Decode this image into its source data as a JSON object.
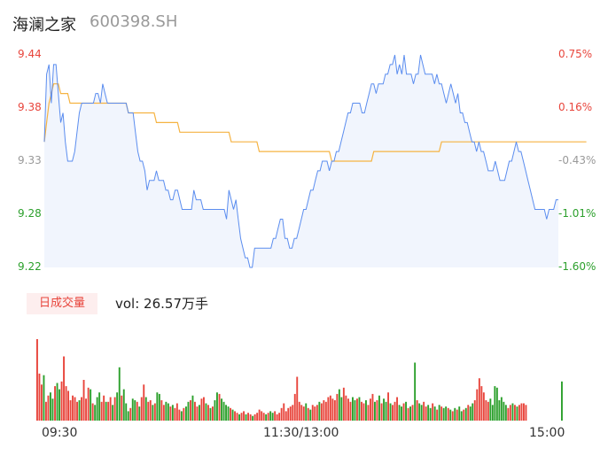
{
  "header": {
    "stock_name": "海澜之家",
    "stock_code": "600398.SH"
  },
  "volume": {
    "badge_label": "日成交量",
    "text": "vol: 26.57万手"
  },
  "colors": {
    "price_line": "#5b8def",
    "avg_line": "#f5b342",
    "up": "#e8453c",
    "down": "#2ca02c",
    "neutral": "#999999"
  },
  "chart_data": [
    {
      "type": "line",
      "x_ticks": [
        "09:30",
        "11:30/13:00",
        "15:00"
      ],
      "y_ticks_left": [
        "9.44",
        "9.38",
        "9.33",
        "9.28",
        "9.22"
      ],
      "y_ticks_right": [
        "0.75%",
        "0.16%",
        "-0.43%",
        "-1.01%",
        "-1.60%"
      ],
      "ylim": [
        9.22,
        9.44
      ],
      "series": [
        {
          "values": [
            9.35,
            9.42,
            9.43,
            9.39,
            9.43,
            9.43,
            9.4,
            9.37,
            9.38,
            9.35,
            9.33,
            9.33,
            9.33,
            9.34,
            9.36,
            9.38,
            9.39,
            9.39,
            9.39,
            9.39,
            9.39,
            9.39,
            9.4,
            9.4,
            9.39,
            9.41,
            9.4,
            9.39,
            9.39,
            9.39,
            9.39,
            9.39,
            9.39,
            9.39,
            9.39,
            9.39,
            9.38,
            9.38,
            9.38,
            9.36,
            9.34,
            9.33,
            9.33,
            9.32,
            9.3,
            9.31,
            9.31,
            9.31,
            9.32,
            9.31,
            9.31,
            9.31,
            9.3,
            9.3,
            9.29,
            9.29,
            9.3,
            9.3,
            9.29,
            9.28,
            9.28,
            9.28,
            9.28,
            9.28,
            9.3,
            9.29,
            9.29,
            9.29,
            9.28,
            9.28,
            9.28,
            9.28,
            9.28,
            9.28,
            9.28,
            9.28,
            9.28,
            9.28,
            9.27,
            9.3,
            9.29,
            9.28,
            9.29,
            9.27,
            9.25,
            9.24,
            9.23,
            9.23,
            9.22,
            9.22,
            9.24,
            9.24,
            9.24,
            9.24,
            9.24,
            9.24,
            9.24,
            9.24,
            9.25,
            9.25,
            9.26,
            9.27,
            9.27,
            9.25,
            9.25,
            9.24,
            9.24,
            9.25,
            9.25,
            9.26,
            9.27,
            9.28,
            9.28,
            9.29,
            9.3,
            9.3,
            9.31,
            9.32,
            9.32,
            9.33,
            9.33,
            9.33,
            9.32,
            9.33,
            9.33,
            9.34,
            9.34,
            9.35,
            9.36,
            9.37,
            9.38,
            9.38,
            9.39,
            9.39,
            9.39,
            9.39,
            9.38,
            9.38,
            9.39,
            9.4,
            9.41,
            9.41,
            9.4,
            9.41,
            9.41,
            9.41,
            9.42,
            9.42,
            9.43,
            9.43,
            9.44,
            9.42,
            9.43,
            9.42,
            9.44,
            9.42,
            9.42,
            9.42,
            9.41,
            9.42,
            9.42,
            9.44,
            9.43,
            9.42,
            9.42,
            9.42,
            9.42,
            9.41,
            9.42,
            9.41,
            9.41,
            9.4,
            9.39,
            9.4,
            9.41,
            9.4,
            9.39,
            9.4,
            9.38,
            9.38,
            9.37,
            9.37,
            9.36,
            9.35,
            9.35,
            9.34,
            9.35,
            9.34,
            9.34,
            9.33,
            9.32,
            9.32,
            9.32,
            9.33,
            9.32,
            9.31,
            9.31,
            9.31,
            9.32,
            9.33,
            9.33,
            9.34,
            9.35,
            9.34,
            9.34,
            9.33,
            9.32,
            9.31,
            9.3,
            9.29,
            9.28,
            9.28,
            9.28,
            9.28,
            9.28,
            9.27,
            9.28,
            9.28,
            9.28,
            9.29,
            9.29
          ]
        },
        {
          "values": [
            9.35,
            9.37,
            9.39,
            9.4,
            9.41,
            9.41,
            9.41,
            9.4,
            9.4,
            9.4,
            9.4,
            9.39,
            9.39,
            9.39,
            9.39,
            9.39,
            9.39,
            9.39,
            9.39,
            9.39,
            9.39,
            9.39,
            9.39,
            9.39,
            9.39,
            9.39,
            9.39,
            9.39,
            9.39,
            9.39,
            9.39,
            9.39,
            9.39,
            9.39,
            9.39,
            9.39,
            9.38,
            9.38,
            9.38,
            9.38,
            9.38,
            9.38,
            9.38,
            9.38,
            9.38,
            9.38,
            9.38,
            9.38,
            9.37,
            9.37,
            9.37,
            9.37,
            9.37,
            9.37,
            9.37,
            9.37,
            9.37,
            9.37,
            9.36,
            9.36,
            9.36,
            9.36,
            9.36,
            9.36,
            9.36,
            9.36,
            9.36,
            9.36,
            9.36,
            9.36,
            9.36,
            9.36,
            9.36,
            9.36,
            9.36,
            9.36,
            9.36,
            9.36,
            9.36,
            9.36,
            9.35,
            9.35,
            9.35,
            9.35,
            9.35,
            9.35,
            9.35,
            9.35,
            9.35,
            9.35,
            9.35,
            9.35,
            9.34,
            9.34,
            9.34,
            9.34,
            9.34,
            9.34,
            9.34,
            9.34,
            9.34,
            9.34,
            9.34,
            9.34,
            9.34,
            9.34,
            9.34,
            9.34,
            9.34,
            9.34,
            9.34,
            9.34,
            9.34,
            9.34,
            9.34,
            9.34,
            9.34,
            9.34,
            9.34,
            9.34,
            9.34,
            9.34,
            9.34,
            9.33,
            9.33,
            9.33,
            9.33,
            9.33,
            9.33,
            9.33,
            9.33,
            9.33,
            9.33,
            9.33,
            9.33,
            9.33,
            9.33,
            9.33,
            9.33,
            9.33,
            9.33,
            9.34,
            9.34,
            9.34,
            9.34,
            9.34,
            9.34,
            9.34,
            9.34,
            9.34,
            9.34,
            9.34,
            9.34,
            9.34,
            9.34,
            9.34,
            9.34,
            9.34,
            9.34,
            9.34,
            9.34,
            9.34,
            9.34,
            9.34,
            9.34,
            9.34,
            9.34,
            9.34,
            9.34,
            9.34,
            9.35,
            9.35,
            9.35,
            9.35,
            9.35,
            9.35,
            9.35,
            9.35,
            9.35,
            9.35,
            9.35,
            9.35,
            9.35,
            9.35,
            9.35,
            9.35,
            9.35,
            9.35,
            9.35,
            9.35,
            9.35,
            9.35,
            9.35,
            9.35,
            9.35,
            9.35,
            9.35,
            9.35,
            9.35,
            9.35,
            9.35,
            9.35,
            9.35,
            9.35,
            9.35,
            9.35,
            9.35,
            9.35,
            9.35,
            9.35,
            9.35,
            9.35,
            9.35,
            9.35,
            9.35,
            9.35,
            9.35,
            9.35,
            9.35,
            9.35,
            9.35,
            9.35,
            9.35,
            9.35,
            9.35,
            9.35,
            9.35,
            9.35,
            9.35,
            9.35,
            9.35,
            9.35,
            9.35
          ]
        }
      ]
    },
    {
      "type": "bar",
      "values": [
        5.2,
        3.0,
        2.3,
        2.9,
        1.2,
        1.6,
        1.8,
        1.4,
        2.2,
        2.4,
        2.0,
        2.5,
        4.1,
        2.2,
        1.9,
        1.3,
        1.6,
        1.5,
        1.2,
        1.3,
        1.5,
        2.6,
        1.4,
        2.1,
        2.0,
        1.1,
        1.0,
        1.5,
        1.8,
        1.2,
        1.6,
        1.2,
        1.2,
        1.5,
        1.0,
        1.5,
        1.8,
        3.4,
        1.6,
        2.0,
        1.1,
        0.6,
        0.8,
        1.4,
        1.3,
        1.2,
        0.9,
        1.5,
        2.3,
        1.5,
        1.2,
        1.3,
        1.0,
        1.1,
        1.8,
        1.7,
        1.3,
        1.0,
        1.2,
        1.1,
        0.9,
        1.0,
        0.8,
        1.1,
        0.7,
        0.6,
        0.8,
        0.9,
        1.2,
        1.3,
        1.6,
        1.2,
        0.9,
        1.0,
        1.4,
        1.5,
        1.1,
        1.0,
        0.8,
        0.9,
        1.3,
        1.8,
        1.7,
        1.4,
        1.2,
        1.0,
        0.9,
        0.8,
        0.7,
        0.6,
        0.5,
        0.4,
        0.5,
        0.6,
        0.4,
        0.5,
        0.4,
        0.3,
        0.4,
        0.5,
        0.7,
        0.6,
        0.5,
        0.4,
        0.5,
        0.6,
        0.5,
        0.6,
        0.4,
        0.5,
        0.8,
        1.1,
        0.6,
        0.8,
        0.9,
        1.0,
        1.7,
        2.8,
        1.2,
        1.0,
        0.9,
        1.1,
        0.8,
        0.7,
        1.0,
        0.9,
        1.0,
        1.2,
        1.1,
        1.3,
        1.2,
        1.5,
        1.6,
        1.4,
        1.3,
        1.7,
        2.0,
        1.5,
        2.1,
        1.6,
        1.4,
        1.2,
        1.5,
        1.3,
        1.4,
        1.5,
        1.2,
        1.1,
        1.3,
        1.0,
        1.4,
        1.7,
        1.2,
        1.3,
        1.6,
        1.1,
        1.4,
        1.2,
        1.8,
        1.1,
        1.0,
        1.2,
        1.5,
        1.0,
        0.9,
        1.1,
        1.2,
        0.8,
        0.9,
        1.0,
        3.7,
        1.3,
        1.1,
        1.0,
        1.2,
        0.9,
        1.0,
        0.8,
        1.1,
        0.9,
        0.7,
        1.0,
        0.9,
        0.8,
        0.9,
        0.8,
        0.7,
        0.6,
        0.8,
        0.7,
        0.9,
        0.6,
        0.7,
        0.8,
        1.0,
        0.9,
        1.1,
        1.3,
        2.0,
        2.7,
        2.2,
        1.8,
        1.3,
        1.2,
        1.4,
        1.0,
        2.2,
        2.1,
        1.3,
        1.5,
        1.2,
        1.0,
        0.8,
        1.0,
        1.1,
        1.0,
        0.9,
        1.0,
        1.1,
        1.1,
        1.0,
        2.5
      ],
      "ylim": [
        0,
        5.2
      ]
    }
  ]
}
